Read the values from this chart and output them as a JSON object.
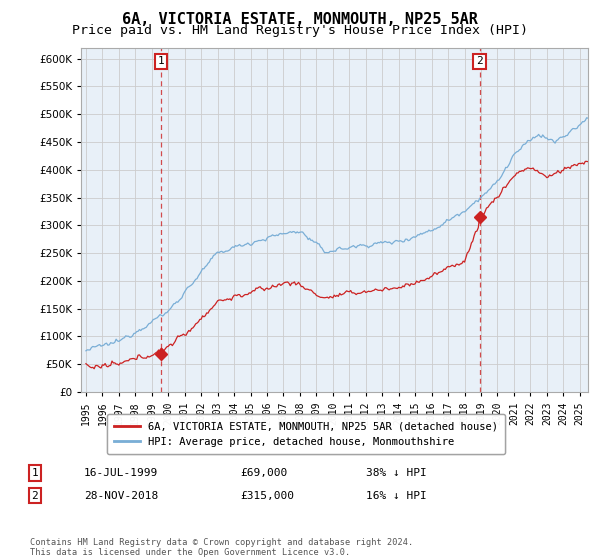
{
  "title": "6A, VICTORIA ESTATE, MONMOUTH, NP25 5AR",
  "subtitle": "Price paid vs. HM Land Registry's House Price Index (HPI)",
  "ylim": [
    0,
    620000
  ],
  "yticks": [
    0,
    50000,
    100000,
    150000,
    200000,
    250000,
    300000,
    350000,
    400000,
    450000,
    500000,
    550000,
    600000
  ],
  "xlim_start": 1994.7,
  "xlim_end": 2025.5,
  "hpi_color": "#7aaed6",
  "price_color": "#cc2222",
  "chart_bg": "#e8f0f8",
  "sale1_date_num": 1999.54,
  "sale1_price": 69000,
  "sale2_date_num": 2018.91,
  "sale2_price": 315000,
  "legend_label_red": "6A, VICTORIA ESTATE, MONMOUTH, NP25 5AR (detached house)",
  "legend_label_blue": "HPI: Average price, detached house, Monmouthshire",
  "annotation1": [
    "1",
    "16-JUL-1999",
    "£69,000",
    "38% ↓ HPI"
  ],
  "annotation2": [
    "2",
    "28-NOV-2018",
    "£315,000",
    "16% ↓ HPI"
  ],
  "footer": "Contains HM Land Registry data © Crown copyright and database right 2024.\nThis data is licensed under the Open Government Licence v3.0.",
  "background_color": "#ffffff",
  "grid_color": "#cccccc",
  "title_fontsize": 11,
  "subtitle_fontsize": 9.5
}
